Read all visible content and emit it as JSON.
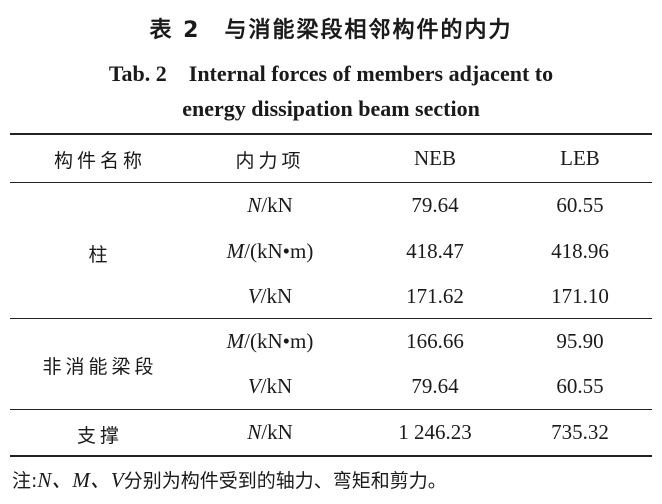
{
  "caption": {
    "cn": "表 2　与消能梁段相邻构件的内力",
    "en_line1": "Tab. 2　Internal forces of members adjacent to",
    "en_line2": "energy dissipation beam section"
  },
  "table": {
    "headers": [
      "构件名称",
      "内力项",
      "NEB",
      "LEB"
    ],
    "groups": [
      {
        "member": "柱",
        "rows": [
          {
            "sym": "N",
            "unit": "/kN",
            "neb": "79.64",
            "leb": "60.55"
          },
          {
            "sym": "M",
            "unit": "/(kN•m)",
            "neb": "418.47",
            "leb": "418.96"
          },
          {
            "sym": "V",
            "unit": "/kN",
            "neb": "171.62",
            "leb": "171.10"
          }
        ]
      },
      {
        "member": "非消能梁段",
        "rows": [
          {
            "sym": "M",
            "unit": "/(kN•m)",
            "neb": "166.66",
            "leb": "95.90"
          },
          {
            "sym": "V",
            "unit": "/kN",
            "neb": "79.64",
            "leb": "60.55"
          }
        ]
      },
      {
        "member": "支撑",
        "rows": [
          {
            "sym": "N",
            "unit": "/kN",
            "neb": "1 246.23",
            "leb": "735.32"
          }
        ]
      }
    ]
  },
  "note": {
    "prefix": "注:",
    "vars": "N、M、V",
    "text": "分别为构件受到的轴力、弯矩和剪力。"
  }
}
